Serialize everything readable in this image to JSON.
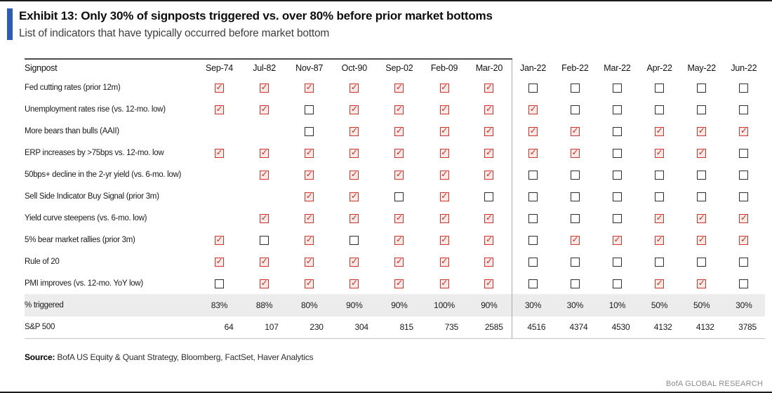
{
  "exhibit": {
    "title": "Exhibit 13: Only 30% of signposts triggered vs. over 80% before prior market bottoms",
    "subtitle": "List of indicators that have typically occurred before market bottom",
    "source_label": "Source:",
    "source_text": " BofA US Equity & Quant Strategy, Bloomberg, FactSet, Haver Analytics",
    "footer": "BofA GLOBAL RESEARCH"
  },
  "colors": {
    "accent_blue": "#2e5db4",
    "checked_red": "#d0342c",
    "unchecked_border": "#2e2e2e",
    "triggered_row_bg": "#ececec"
  },
  "icons": {
    "checked_checkbox": "red checkbox with check mark ✓",
    "unchecked_checkbox": "empty black-outline checkbox"
  },
  "table": {
    "header": [
      "Signpost",
      "Sep-74",
      "Jul-82",
      "Nov-87",
      "Oct-90",
      "Sep-02",
      "Feb-09",
      "Mar-20",
      "Jan-22",
      "Feb-22",
      "Mar-22",
      "Apr-22",
      "May-22",
      "Jun-22"
    ],
    "divider_after_column": "Mar-20",
    "rows": [
      {
        "label": "Fed cutting rates (prior 12m)",
        "cells": [
          "checked",
          "checked",
          "checked",
          "checked",
          "checked",
          "checked",
          "checked",
          "unchecked",
          "unchecked",
          "unchecked",
          "unchecked",
          "unchecked",
          "unchecked"
        ]
      },
      {
        "label": "Unemployment rates rise (vs. 12-mo. low)",
        "cells": [
          "checked",
          "checked",
          "unchecked",
          "checked",
          "checked",
          "checked",
          "checked",
          "checked",
          "unchecked",
          "unchecked",
          "unchecked",
          "unchecked",
          "unchecked"
        ]
      },
      {
        "label": "More bears than bulls (AAII)",
        "cells": [
          "blank",
          "blank",
          "unchecked",
          "checked",
          "checked",
          "checked",
          "checked",
          "checked",
          "checked",
          "unchecked",
          "checked",
          "checked",
          "checked"
        ]
      },
      {
        "label": "ERP increases by >75bps vs. 12-mo. low",
        "cells": [
          "checked",
          "checked",
          "checked",
          "checked",
          "checked",
          "checked",
          "checked",
          "checked",
          "checked",
          "unchecked",
          "checked",
          "checked",
          "unchecked"
        ]
      },
      {
        "label": "50bps+ decline in the 2-yr yield (vs. 6-mo. low)",
        "cells": [
          "blank",
          "checked",
          "checked",
          "checked",
          "checked",
          "checked",
          "checked",
          "unchecked",
          "unchecked",
          "unchecked",
          "unchecked",
          "unchecked",
          "unchecked"
        ]
      },
      {
        "label": "Sell Side Indicator Buy Signal (prior 3m)",
        "cells": [
          "blank",
          "blank",
          "checked",
          "checked",
          "unchecked",
          "checked",
          "unchecked",
          "unchecked",
          "unchecked",
          "unchecked",
          "unchecked",
          "unchecked",
          "unchecked"
        ]
      },
      {
        "label": "Yield curve steepens (vs. 6-mo. low)",
        "cells": [
          "blank",
          "checked",
          "checked",
          "checked",
          "checked",
          "checked",
          "checked",
          "unchecked",
          "unchecked",
          "unchecked",
          "checked",
          "checked",
          "checked"
        ]
      },
      {
        "label": "5% bear market rallies (prior 3m)",
        "cells": [
          "checked",
          "unchecked",
          "checked",
          "unchecked",
          "checked",
          "checked",
          "checked",
          "unchecked",
          "checked",
          "checked",
          "checked",
          "checked",
          "checked"
        ]
      },
      {
        "label": "Rule of 20",
        "cells": [
          "checked",
          "checked",
          "checked",
          "checked",
          "checked",
          "checked",
          "checked",
          "unchecked",
          "unchecked",
          "unchecked",
          "unchecked",
          "unchecked",
          "unchecked"
        ]
      },
      {
        "label": "PMI improves (vs. 12-mo. YoY low)",
        "cells": [
          "unchecked",
          "checked",
          "checked",
          "checked",
          "checked",
          "checked",
          "checked",
          "unchecked",
          "unchecked",
          "unchecked",
          "checked",
          "checked",
          "unchecked"
        ]
      }
    ],
    "triggered": {
      "label": "% triggered",
      "values": [
        "83%",
        "88%",
        "80%",
        "90%",
        "90%",
        "100%",
        "90%",
        "30%",
        "30%",
        "10%",
        "50%",
        "50%",
        "30%"
      ]
    },
    "sp500": {
      "label": "S&P 500",
      "values": [
        "64",
        "107",
        "230",
        "304",
        "815",
        "735",
        "2585",
        "4516",
        "4374",
        "4530",
        "4132",
        "4132",
        "3785"
      ]
    }
  }
}
